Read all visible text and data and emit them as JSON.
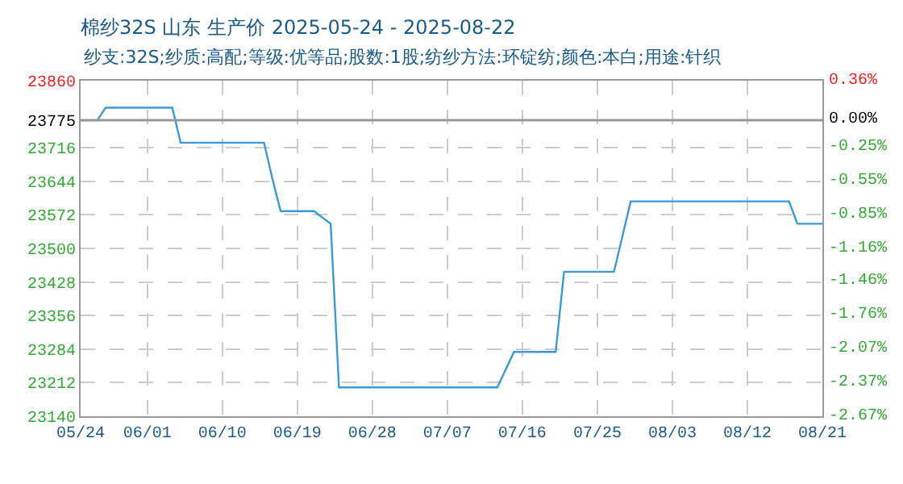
{
  "chart_data": {
    "type": "line",
    "title": "棉纱32S 山东 生产价 2025-05-24 - 2025-08-22",
    "subtitle": "纱支:32S;纱质:高配;等级:优等品;股数:1股;纺纱方法:环锭纺;颜色:本白;用途:针织",
    "x": [
      "2025-05-24",
      "2025-05-26",
      "2025-05-27",
      "2025-06-04",
      "2025-06-05",
      "2025-06-15",
      "2025-06-16",
      "2025-06-17",
      "2025-06-21",
      "2025-06-23",
      "2025-06-24",
      "2025-07-13",
      "2025-07-15",
      "2025-07-20",
      "2025-07-21",
      "2025-07-27",
      "2025-07-29",
      "2025-08-17",
      "2025-08-18",
      "2025-08-21"
    ],
    "series": [
      {
        "color": "#3a9ad9",
        "values": [
          23775,
          23775,
          23802,
          23802,
          23727,
          23727,
          23650,
          23580,
          23580,
          23553,
          23202,
          23202,
          23278,
          23278,
          23450,
          23450,
          23601,
          23601,
          23553,
          23553
        ]
      }
    ],
    "xlim": [
      "2025-05-24",
      "2025-08-21"
    ],
    "xticks": [
      {
        "value": "2025-05-24",
        "label": "05/24"
      },
      {
        "value": "2025-06-01",
        "label": "06/01"
      },
      {
        "value": "2025-06-10",
        "label": "06/10"
      },
      {
        "value": "2025-06-19",
        "label": "06/19"
      },
      {
        "value": "2025-06-28",
        "label": "06/28"
      },
      {
        "value": "2025-07-07",
        "label": "07/07"
      },
      {
        "value": "2025-07-16",
        "label": "07/16"
      },
      {
        "value": "2025-07-25",
        "label": "07/25"
      },
      {
        "value": "2025-08-03",
        "label": "08/03"
      },
      {
        "value": "2025-08-12",
        "label": "08/12"
      },
      {
        "value": "2025-08-21",
        "label": "08/21"
      }
    ],
    "ylim": [
      23140,
      23860
    ],
    "yticks": [
      23140,
      23212,
      23284,
      23356,
      23428,
      23500,
      23572,
      23644,
      23716,
      23775,
      23860
    ],
    "y2lim": [
      -2.67,
      0.36
    ],
    "y2ticks": [
      {
        "value": -2.67,
        "label": "-2.67%"
      },
      {
        "value": -2.37,
        "label": "-2.37%"
      },
      {
        "value": -2.07,
        "label": "-2.07%"
      },
      {
        "value": -1.76,
        "label": "-1.76%"
      },
      {
        "value": -1.46,
        "label": "-1.46%"
      },
      {
        "value": -1.16,
        "label": "-1.16%"
      },
      {
        "value": -0.85,
        "label": "-0.85%"
      },
      {
        "value": -0.55,
        "label": "-0.55%"
      },
      {
        "value": -0.25,
        "label": "-0.25%"
      },
      {
        "value": 0,
        "label": "0.00%"
      },
      {
        "value": 0.36,
        "label": "0.36%"
      }
    ],
    "ref_lines": [
      {
        "axis": "y",
        "value": 23775,
        "color": "#999999"
      }
    ],
    "grid": true,
    "marker": "none",
    "line_style": "solid"
  }
}
